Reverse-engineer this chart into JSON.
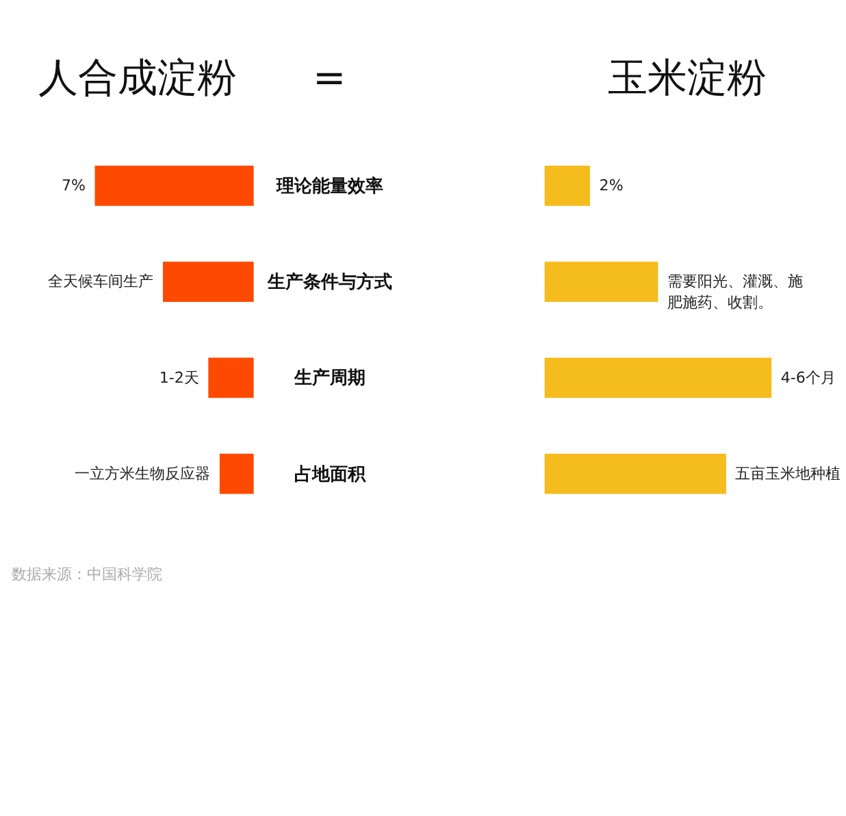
{
  "chart_data": [
    {
      "type": "bar",
      "orientation": "horizontal",
      "title": "人合成淀粉",
      "categories": [
        "理论能量效率",
        "生产条件与方式",
        "生产周期",
        "占地面积"
      ],
      "tick_labels": "y",
      "series": [
        {
          "color": "#fe4a01",
          "values": [
            7,
            4,
            2,
            1.5
          ],
          "value_labels": [
            "7%",
            "全天候车间生产",
            "1-2天",
            "一立方米生物反应器"
          ]
        }
      ],
      "annotations": [
        "=",
        "数据来源：中国科学院"
      ]
    },
    {
      "type": "bar",
      "orientation": "horizontal",
      "title": "玉米淀粉",
      "categories": [
        null,
        null,
        null,
        null
      ],
      "tick_labels": false,
      "series": [
        {
          "color": "#f5bc1e",
          "values": [
            2,
            5,
            10,
            8
          ],
          "value_labels": [
            "2%",
            "需要阳光、灌溉、施肥施药、收割。",
            "4-6个月",
            "五亩玉米地种植"
          ]
        }
      ]
    }
  ]
}
